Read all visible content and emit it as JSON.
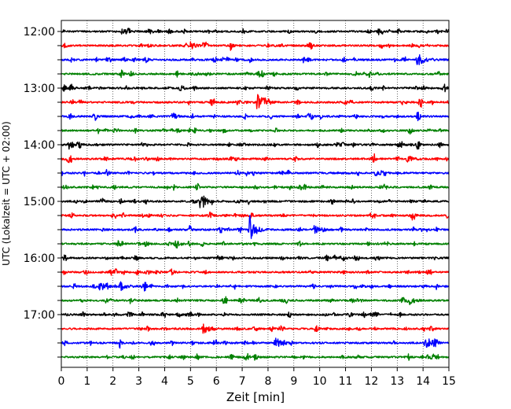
{
  "chart_data": {
    "type": "line",
    "subtype": "helicorder",
    "xlabel": "Zeit  [min]",
    "ylabel": "UTC (Lokalzeit = UTC + 02:00)",
    "xlim": [
      0,
      15
    ],
    "x_ticks": [
      0,
      1,
      2,
      3,
      4,
      5,
      6,
      7,
      8,
      9,
      10,
      11,
      12,
      13,
      14,
      15
    ],
    "grid": "vertical dotted at each minute",
    "trace_colors": [
      "#000000",
      "#ff0000",
      "#0000ff",
      "#008000"
    ],
    "trace_interval_min": 15,
    "traces": [
      {
        "start": "12:00",
        "color": "#000000",
        "label": "12:00"
      },
      {
        "start": "12:15",
        "color": "#ff0000",
        "label": ""
      },
      {
        "start": "12:30",
        "color": "#0000ff",
        "label": ""
      },
      {
        "start": "12:45",
        "color": "#008000",
        "label": ""
      },
      {
        "start": "13:00",
        "color": "#000000",
        "label": "13:00"
      },
      {
        "start": "13:15",
        "color": "#ff0000",
        "label": ""
      },
      {
        "start": "13:30",
        "color": "#0000ff",
        "label": ""
      },
      {
        "start": "13:45",
        "color": "#008000",
        "label": ""
      },
      {
        "start": "14:00",
        "color": "#000000",
        "label": "14:00"
      },
      {
        "start": "14:15",
        "color": "#ff0000",
        "label": ""
      },
      {
        "start": "14:30",
        "color": "#0000ff",
        "label": ""
      },
      {
        "start": "14:45",
        "color": "#008000",
        "label": ""
      },
      {
        "start": "15:00",
        "color": "#000000",
        "label": "15:00"
      },
      {
        "start": "15:15",
        "color": "#ff0000",
        "label": ""
      },
      {
        "start": "15:30",
        "color": "#0000ff",
        "label": ""
      },
      {
        "start": "15:45",
        "color": "#008000",
        "label": ""
      },
      {
        "start": "16:00",
        "color": "#000000",
        "label": "16:00"
      },
      {
        "start": "16:15",
        "color": "#ff0000",
        "label": ""
      },
      {
        "start": "16:30",
        "color": "#0000ff",
        "label": ""
      },
      {
        "start": "16:45",
        "color": "#008000",
        "label": ""
      },
      {
        "start": "17:00",
        "color": "#000000",
        "label": "17:00"
      },
      {
        "start": "17:15",
        "color": "#ff0000",
        "label": ""
      },
      {
        "start": "17:30",
        "color": "#0000ff",
        "label": ""
      },
      {
        "start": "17:45",
        "color": "#008000",
        "label": ""
      }
    ],
    "events": [
      {
        "trace": "12:00",
        "minute": 2.3,
        "amplitude": 0.2
      },
      {
        "trace": "12:15",
        "minute": 5.0,
        "amplitude": 0.25
      },
      {
        "trace": "12:30",
        "minute": 13.8,
        "amplitude": 0.5
      },
      {
        "trace": "13:15",
        "minute": 7.6,
        "amplitude": 0.75
      },
      {
        "trace": "14:00",
        "minute": 0.3,
        "amplitude": 0.3
      },
      {
        "trace": "14:15",
        "minute": 13.4,
        "amplitude": 0.25
      },
      {
        "trace": "15:00",
        "minute": 5.4,
        "amplitude": 0.75
      },
      {
        "trace": "15:30",
        "minute": 7.3,
        "amplitude": 1.0
      },
      {
        "trace": "15:30",
        "minute": 9.8,
        "amplitude": 0.3
      },
      {
        "trace": "16:30",
        "minute": 1.5,
        "amplitude": 0.35
      },
      {
        "trace": "16:30",
        "minute": 2.3,
        "amplitude": 0.3
      },
      {
        "trace": "16:45",
        "minute": 13.5,
        "amplitude": 0.25
      },
      {
        "trace": "17:15",
        "minute": 5.5,
        "amplitude": 0.45
      },
      {
        "trace": "17:30",
        "minute": 8.3,
        "amplitude": 0.45
      },
      {
        "trace": "17:30",
        "minute": 14.1,
        "amplitude": 0.45
      }
    ]
  }
}
